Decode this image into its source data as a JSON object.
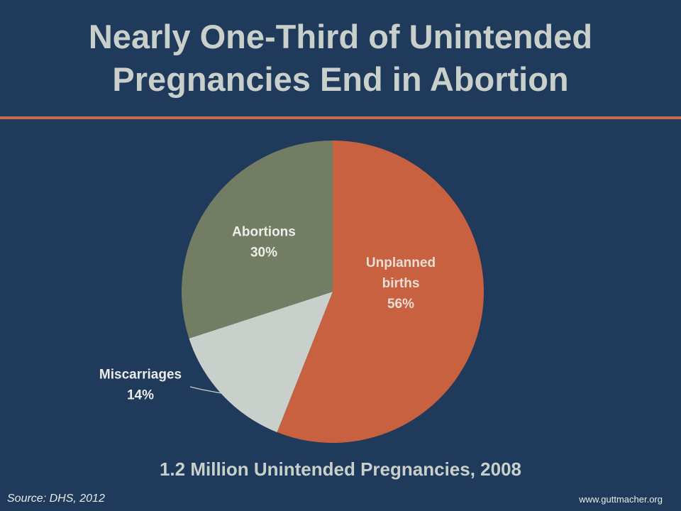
{
  "title_lines": [
    "Nearly One-Third of Unintended",
    "Pregnancies End in Abortion"
  ],
  "caption": "1.2 Million Unintended Pregnancies, 2008",
  "source": "Source: DHS, 2012",
  "url": "www.guttmacher.org",
  "colors": {
    "background": "#1f3a5a",
    "rule": "#c96a4c",
    "title_text": "#c9d0cc"
  },
  "chart_data": {
    "type": "pie",
    "title": "Nearly One-Third of Unintended Pregnancies End in Abortion",
    "start": "12 o'clock",
    "direction": "clockwise",
    "slices": [
      {
        "label_lines": [
          "Unplanned",
          "births",
          "56%"
        ],
        "value": 56,
        "color": "#c8613f",
        "label_color": "#e9ddd4"
      },
      {
        "label_lines": [
          "Miscarriages",
          "14%"
        ],
        "value": 14,
        "color": "#c9d0cc",
        "label_color": "#e9ecea"
      },
      {
        "label_lines": [
          "Abortions",
          "30%"
        ],
        "value": 30,
        "color": "#737d64",
        "label_color": "#eceee7"
      }
    ]
  }
}
